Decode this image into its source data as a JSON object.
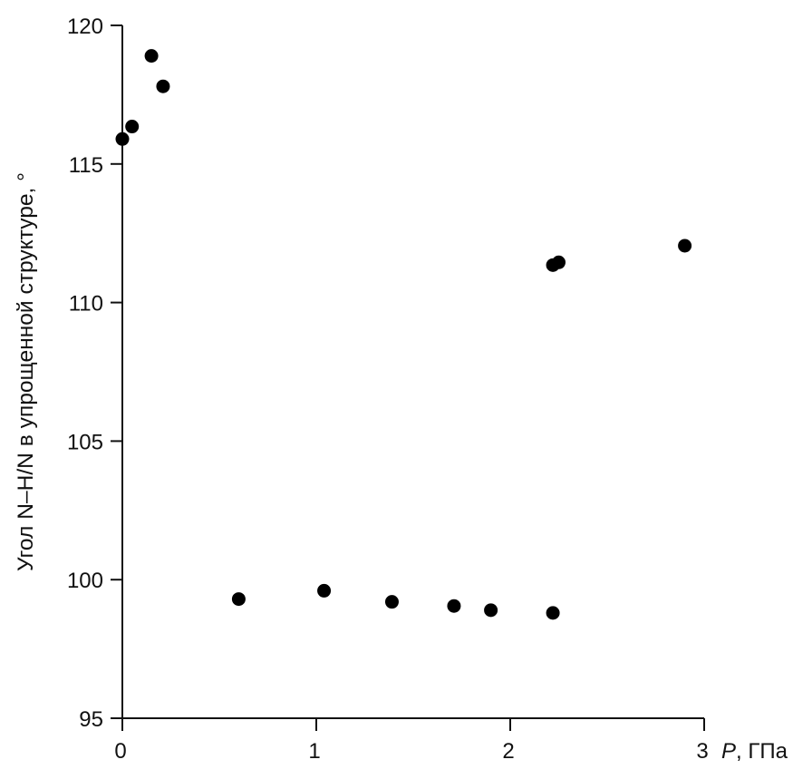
{
  "chart_data": {
    "type": "scatter",
    "title": "",
    "xlabel_var": "P",
    "xlabel_unit": ", ГПа",
    "ylabel": "Угол N–H/N в упрощенной структуре, °",
    "xlim": [
      0,
      3
    ],
    "ylim": [
      95,
      120
    ],
    "xticks": [
      0,
      1,
      2,
      3
    ],
    "yticks": [
      95,
      100,
      105,
      110,
      115,
      120
    ],
    "grid": false,
    "marker_color": "#000000",
    "points": [
      {
        "x": 0.0,
        "y": 115.9
      },
      {
        "x": 0.05,
        "y": 116.35
      },
      {
        "x": 0.15,
        "y": 118.9
      },
      {
        "x": 0.21,
        "y": 117.8
      },
      {
        "x": 0.6,
        "y": 99.3
      },
      {
        "x": 1.04,
        "y": 99.6
      },
      {
        "x": 1.39,
        "y": 99.2
      },
      {
        "x": 1.71,
        "y": 99.05
      },
      {
        "x": 1.9,
        "y": 98.9
      },
      {
        "x": 2.22,
        "y": 98.8
      },
      {
        "x": 2.22,
        "y": 111.35
      },
      {
        "x": 2.25,
        "y": 111.45
      },
      {
        "x": 2.9,
        "y": 112.05
      }
    ]
  }
}
